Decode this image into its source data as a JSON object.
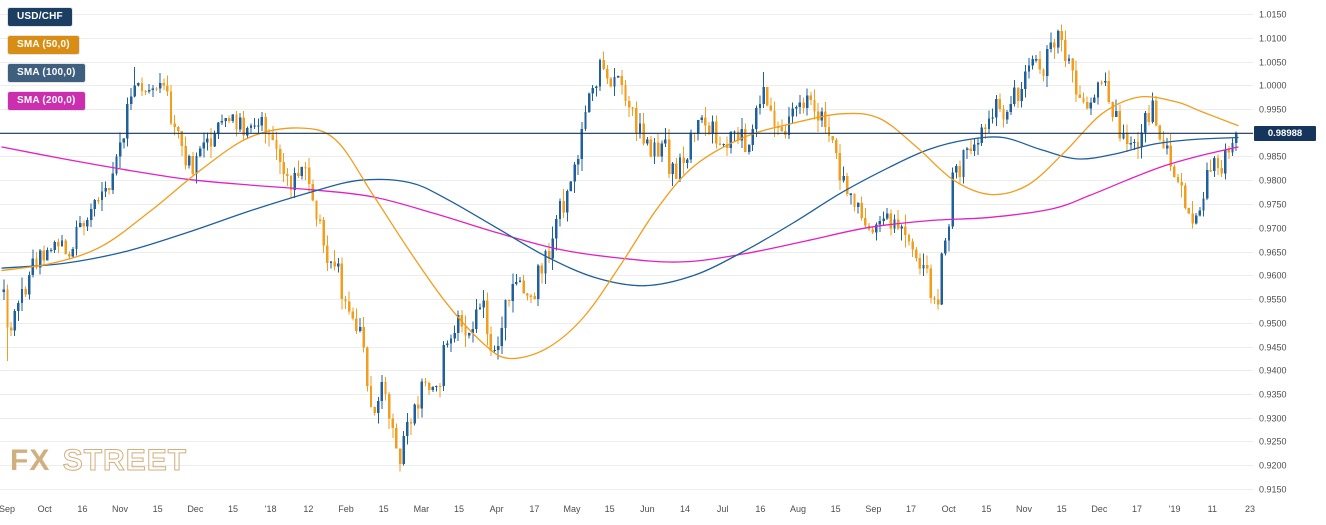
{
  "symbol": "USD/CHF",
  "legend": {
    "items": [
      {
        "label": "USD/CHF",
        "color": "#1d3e63"
      },
      {
        "label": "SMA (50,0)",
        "color": "#d88d15"
      },
      {
        "label": "SMA (100,0)",
        "color": "#3f5f7e"
      },
      {
        "label": "SMA (200,0)",
        "color": "#cb2fb0"
      }
    ]
  },
  "watermark": {
    "fx": "FX",
    "street": "STREET",
    "color": "#c9a268"
  },
  "price_badge": {
    "label": "0.98988",
    "bg": "#16355c",
    "text_color": "#ffffff"
  },
  "chart_data": {
    "type": "candlestick",
    "title": "USD/CHF daily candlestick chart with SMA(50), SMA(100) and SMA(200) overlays",
    "current_price": 0.98988,
    "ylim": [
      0.915,
      1.015
    ],
    "grid": true,
    "y_ticks": [
      "1.0150",
      "1.0100",
      "1.0050",
      "1.0000",
      "0.9950",
      "0.9900",
      "0.9850",
      "0.9800",
      "0.9750",
      "0.9700",
      "0.9650",
      "0.9600",
      "0.9550",
      "0.9500",
      "0.9450",
      "0.9400",
      "0.9350",
      "0.9300",
      "0.9250",
      "0.9200",
      "0.9150"
    ],
    "x_ticks": [
      "Sep",
      "Oct",
      "16",
      "Nov",
      "15",
      "Dec",
      "15",
      "'18",
      "12",
      "Feb",
      "15",
      "Mar",
      "15",
      "Apr",
      "17",
      "May",
      "15",
      "Jun",
      "14",
      "Jul",
      "16",
      "Aug",
      "15",
      "Sep",
      "17",
      "Oct",
      "15",
      "Nov",
      "15",
      "Dec",
      "17",
      "'19",
      "11",
      "23"
    ],
    "candle_count": 340,
    "colors": {
      "up": "#20609c",
      "down": "#f29d1d",
      "sma50": "#f29d1d",
      "sma100": "#1e5f9e",
      "sma200": "#e121c4",
      "price_line": "#16355c",
      "grid": "#ededed",
      "axis_text": "#4d4d4d"
    },
    "price_path": [
      [
        0.0,
        0.959
      ],
      [
        0.004,
        0.946
      ],
      [
        0.012,
        0.955
      ],
      [
        0.025,
        0.963
      ],
      [
        0.04,
        0.967
      ],
      [
        0.052,
        0.965
      ],
      [
        0.065,
        0.972
      ],
      [
        0.078,
        0.9755
      ],
      [
        0.088,
        0.98
      ],
      [
        0.096,
        0.99
      ],
      [
        0.105,
        1.0005
      ],
      [
        0.115,
        0.9985
      ],
      [
        0.125,
        1.0005
      ],
      [
        0.135,
        0.995
      ],
      [
        0.145,
        0.988
      ],
      [
        0.152,
        0.9815
      ],
      [
        0.16,
        0.985
      ],
      [
        0.172,
        0.992
      ],
      [
        0.185,
        0.9935
      ],
      [
        0.196,
        0.9895
      ],
      [
        0.21,
        0.993
      ],
      [
        0.222,
        0.9855
      ],
      [
        0.235,
        0.979
      ],
      [
        0.243,
        0.984
      ],
      [
        0.252,
        0.976
      ],
      [
        0.262,
        0.965
      ],
      [
        0.272,
        0.959
      ],
      [
        0.282,
        0.951
      ],
      [
        0.292,
        0.944
      ],
      [
        0.3,
        0.9305
      ],
      [
        0.308,
        0.937
      ],
      [
        0.316,
        0.928
      ],
      [
        0.322,
        0.9205
      ],
      [
        0.33,
        0.929
      ],
      [
        0.34,
        0.938
      ],
      [
        0.35,
        0.935
      ],
      [
        0.36,
        0.946
      ],
      [
        0.37,
        0.952
      ],
      [
        0.378,
        0.948
      ],
      [
        0.388,
        0.955
      ],
      [
        0.398,
        0.9435
      ],
      [
        0.408,
        0.953
      ],
      [
        0.418,
        0.958
      ],
      [
        0.428,
        0.956
      ],
      [
        0.436,
        0.962
      ],
      [
        0.445,
        0.968
      ],
      [
        0.455,
        0.976
      ],
      [
        0.465,
        0.9845
      ],
      [
        0.475,
        0.996
      ],
      [
        0.484,
        1.004
      ],
      [
        0.492,
        0.999
      ],
      [
        0.5,
        1.002
      ],
      [
        0.508,
        0.994
      ],
      [
        0.515,
        0.99
      ],
      [
        0.525,
        0.985
      ],
      [
        0.535,
        0.988
      ],
      [
        0.545,
        0.98
      ],
      [
        0.553,
        0.985
      ],
      [
        0.565,
        0.995
      ],
      [
        0.575,
        0.99
      ],
      [
        0.585,
        0.986
      ],
      [
        0.595,
        0.99
      ],
      [
        0.602,
        0.987
      ],
      [
        0.61,
        0.994
      ],
      [
        0.616,
        0.9995
      ],
      [
        0.624,
        0.995
      ],
      [
        0.632,
        0.9905
      ],
      [
        0.645,
        0.995
      ],
      [
        0.655,
        0.997
      ],
      [
        0.665,
        0.992
      ],
      [
        0.673,
        0.987
      ],
      [
        0.685,
        0.978
      ],
      [
        0.695,
        0.972
      ],
      [
        0.705,
        0.968
      ],
      [
        0.715,
        0.972
      ],
      [
        0.725,
        0.97
      ],
      [
        0.735,
        0.965
      ],
      [
        0.745,
        0.962
      ],
      [
        0.752,
        0.956
      ],
      [
        0.757,
        0.9545
      ],
      [
        0.763,
        0.965
      ],
      [
        0.77,
        0.979
      ],
      [
        0.778,
        0.985
      ],
      [
        0.788,
        0.988
      ],
      [
        0.798,
        0.992
      ],
      [
        0.808,
        0.996
      ],
      [
        0.815,
        0.993
      ],
      [
        0.825,
        1.001
      ],
      [
        0.835,
        1.006
      ],
      [
        0.843,
        1.003
      ],
      [
        0.852,
        1.0095
      ],
      [
        0.857,
        1.011
      ],
      [
        0.862,
        1.005
      ],
      [
        0.87,
        0.999
      ],
      [
        0.878,
        0.996
      ],
      [
        0.885,
        0.999
      ],
      [
        0.893,
        1.0
      ],
      [
        0.9,
        0.995
      ],
      [
        0.908,
        0.99
      ],
      [
        0.916,
        0.987
      ],
      [
        0.924,
        0.992
      ],
      [
        0.932,
        0.995
      ],
      [
        0.94,
        0.988
      ],
      [
        0.948,
        0.985
      ],
      [
        0.956,
        0.979
      ],
      [
        0.962,
        0.975
      ],
      [
        0.968,
        0.972
      ],
      [
        0.975,
        0.979
      ],
      [
        0.982,
        0.985
      ],
      [
        0.988,
        0.982
      ],
      [
        0.994,
        0.987
      ],
      [
        1.0,
        0.98988
      ]
    ],
    "extremes": [
      {
        "t": 0.004,
        "low": 0.942
      },
      {
        "t": 0.105,
        "high": 1.0038
      },
      {
        "t": 0.322,
        "low": 0.9187
      },
      {
        "t": 0.484,
        "high": 1.0056
      },
      {
        "t": 0.616,
        "high": 1.0028
      },
      {
        "t": 0.757,
        "low": 0.9528
      },
      {
        "t": 0.857,
        "high": 1.0128
      }
    ],
    "sma50": [
      [
        0.0,
        0.961
      ],
      [
        0.04,
        0.9625
      ],
      [
        0.08,
        0.966
      ],
      [
        0.12,
        0.9735
      ],
      [
        0.16,
        0.982
      ],
      [
        0.2,
        0.989
      ],
      [
        0.24,
        0.991
      ],
      [
        0.27,
        0.9885
      ],
      [
        0.3,
        0.977
      ],
      [
        0.33,
        0.965
      ],
      [
        0.36,
        0.954
      ],
      [
        0.39,
        0.9455
      ],
      [
        0.41,
        0.9425
      ],
      [
        0.44,
        0.9445
      ],
      [
        0.47,
        0.951
      ],
      [
        0.5,
        0.962
      ],
      [
        0.53,
        0.974
      ],
      [
        0.56,
        0.983
      ],
      [
        0.6,
        0.989
      ],
      [
        0.64,
        0.992
      ],
      [
        0.68,
        0.994
      ],
      [
        0.71,
        0.993
      ],
      [
        0.74,
        0.987
      ],
      [
        0.77,
        0.98
      ],
      [
        0.8,
        0.977
      ],
      [
        0.83,
        0.979
      ],
      [
        0.86,
        0.986
      ],
      [
        0.89,
        0.994
      ],
      [
        0.92,
        0.9975
      ],
      [
        0.95,
        0.9965
      ],
      [
        0.97,
        0.9945
      ],
      [
        1.0,
        0.9915
      ]
    ],
    "sma100": [
      [
        0.0,
        0.9615
      ],
      [
        0.05,
        0.9625
      ],
      [
        0.1,
        0.965
      ],
      [
        0.15,
        0.969
      ],
      [
        0.2,
        0.9735
      ],
      [
        0.25,
        0.9775
      ],
      [
        0.29,
        0.98
      ],
      [
        0.33,
        0.9795
      ],
      [
        0.36,
        0.976
      ],
      [
        0.4,
        0.97
      ],
      [
        0.44,
        0.964
      ],
      [
        0.48,
        0.9595
      ],
      [
        0.52,
        0.9578
      ],
      [
        0.56,
        0.96
      ],
      [
        0.6,
        0.965
      ],
      [
        0.64,
        0.971
      ],
      [
        0.68,
        0.9775
      ],
      [
        0.72,
        0.983
      ],
      [
        0.75,
        0.9865
      ],
      [
        0.78,
        0.9885
      ],
      [
        0.81,
        0.989
      ],
      [
        0.84,
        0.9865
      ],
      [
        0.87,
        0.9845
      ],
      [
        0.9,
        0.9855
      ],
      [
        0.93,
        0.9875
      ],
      [
        0.96,
        0.9885
      ],
      [
        1.0,
        0.989
      ]
    ],
    "sma200": [
      [
        0.0,
        0.987
      ],
      [
        0.05,
        0.9845
      ],
      [
        0.1,
        0.9822
      ],
      [
        0.15,
        0.9802
      ],
      [
        0.2,
        0.979
      ],
      [
        0.25,
        0.978
      ],
      [
        0.3,
        0.9765
      ],
      [
        0.35,
        0.973
      ],
      [
        0.4,
        0.969
      ],
      [
        0.45,
        0.9655
      ],
      [
        0.5,
        0.9636
      ],
      [
        0.55,
        0.9628
      ],
      [
        0.6,
        0.9645
      ],
      [
        0.65,
        0.9672
      ],
      [
        0.7,
        0.97
      ],
      [
        0.75,
        0.9715
      ],
      [
        0.8,
        0.9722
      ],
      [
        0.85,
        0.974
      ],
      [
        0.88,
        0.9768
      ],
      [
        0.91,
        0.98
      ],
      [
        0.94,
        0.983
      ],
      [
        0.97,
        0.9852
      ],
      [
        1.0,
        0.987
      ]
    ]
  }
}
